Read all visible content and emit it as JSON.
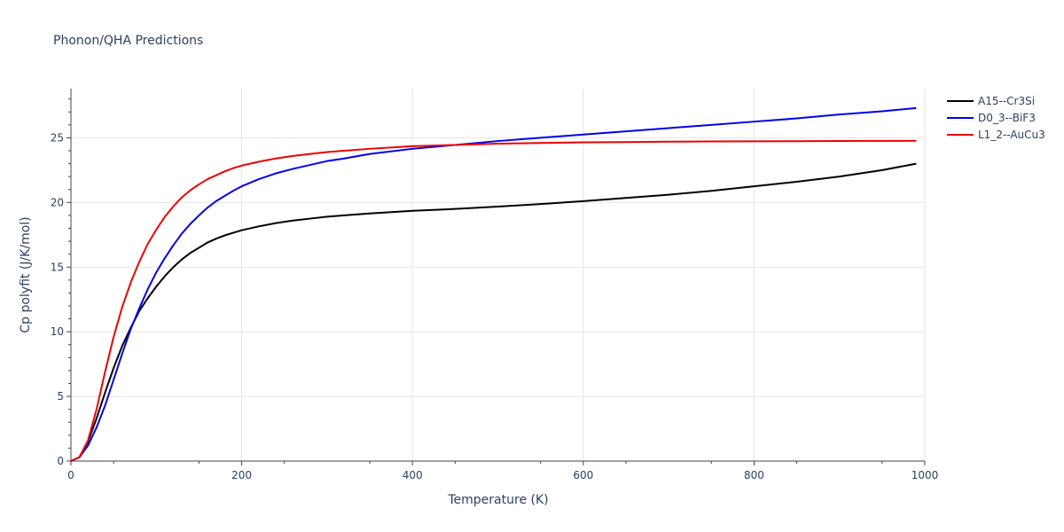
{
  "chart_data": {
    "type": "line",
    "title": "Phonon/QHA Predictions",
    "xlabel": "Temperature (K)",
    "ylabel": "Cp polyfit (J/K/mol)",
    "xlim": [
      0,
      1000
    ],
    "ylim": [
      0,
      28.8
    ],
    "xticks": [
      0,
      200,
      400,
      600,
      800,
      1000
    ],
    "yticks": [
      0,
      5,
      10,
      15,
      20,
      25
    ],
    "grid": true,
    "legend": "right",
    "series": [
      {
        "name": "A15--Cr3Si",
        "color": "#000000",
        "x": [
          0,
          10,
          20,
          30,
          40,
          50,
          60,
          70,
          80,
          90,
          100,
          110,
          120,
          130,
          140,
          150,
          160,
          170,
          180,
          190,
          200,
          220,
          240,
          260,
          280,
          300,
          320,
          350,
          400,
          450,
          500,
          550,
          600,
          650,
          700,
          750,
          800,
          850,
          900,
          950,
          990
        ],
        "y": [
          0,
          0.3,
          1.5,
          3.3,
          5.3,
          7.2,
          8.9,
          10.3,
          11.6,
          12.6,
          13.5,
          14.3,
          15.0,
          15.6,
          16.1,
          16.5,
          16.9,
          17.2,
          17.45,
          17.65,
          17.85,
          18.15,
          18.4,
          18.6,
          18.75,
          18.9,
          19.0,
          19.15,
          19.35,
          19.5,
          19.68,
          19.88,
          20.1,
          20.35,
          20.6,
          20.9,
          21.25,
          21.6,
          22.0,
          22.5,
          23.0
        ]
      },
      {
        "name": "D0_3--BiF3",
        "color": "#0000ee",
        "x": [
          0,
          10,
          20,
          30,
          40,
          50,
          60,
          70,
          80,
          90,
          100,
          110,
          120,
          130,
          140,
          150,
          160,
          170,
          180,
          190,
          200,
          220,
          240,
          260,
          280,
          300,
          320,
          350,
          400,
          450,
          500,
          550,
          600,
          650,
          700,
          750,
          800,
          850,
          900,
          950,
          990
        ],
        "y": [
          0,
          0.3,
          1.2,
          2.6,
          4.3,
          6.3,
          8.3,
          10.2,
          11.8,
          13.3,
          14.6,
          15.7,
          16.7,
          17.6,
          18.35,
          19.0,
          19.6,
          20.1,
          20.5,
          20.9,
          21.25,
          21.8,
          22.25,
          22.6,
          22.9,
          23.2,
          23.4,
          23.75,
          24.15,
          24.45,
          24.75,
          25.0,
          25.25,
          25.5,
          25.75,
          26.0,
          26.25,
          26.5,
          26.8,
          27.05,
          27.3
        ]
      },
      {
        "name": "L1_2--AuCu3",
        "color": "#ee0000",
        "x": [
          0,
          10,
          20,
          30,
          40,
          50,
          60,
          70,
          80,
          90,
          100,
          110,
          120,
          130,
          140,
          150,
          160,
          170,
          180,
          190,
          200,
          220,
          240,
          260,
          280,
          300,
          320,
          350,
          400,
          450,
          500,
          550,
          600,
          650,
          700,
          750,
          800,
          850,
          900,
          950,
          990
        ],
        "y": [
          0,
          0.3,
          1.6,
          4.0,
          6.9,
          9.6,
          11.9,
          13.8,
          15.4,
          16.8,
          17.9,
          18.9,
          19.7,
          20.4,
          20.95,
          21.4,
          21.8,
          22.1,
          22.4,
          22.65,
          22.85,
          23.15,
          23.4,
          23.6,
          23.75,
          23.9,
          24.0,
          24.15,
          24.35,
          24.45,
          24.55,
          24.6,
          24.65,
          24.67,
          24.7,
          24.72,
          24.73,
          24.74,
          24.75,
          24.76,
          24.77
        ]
      }
    ]
  }
}
